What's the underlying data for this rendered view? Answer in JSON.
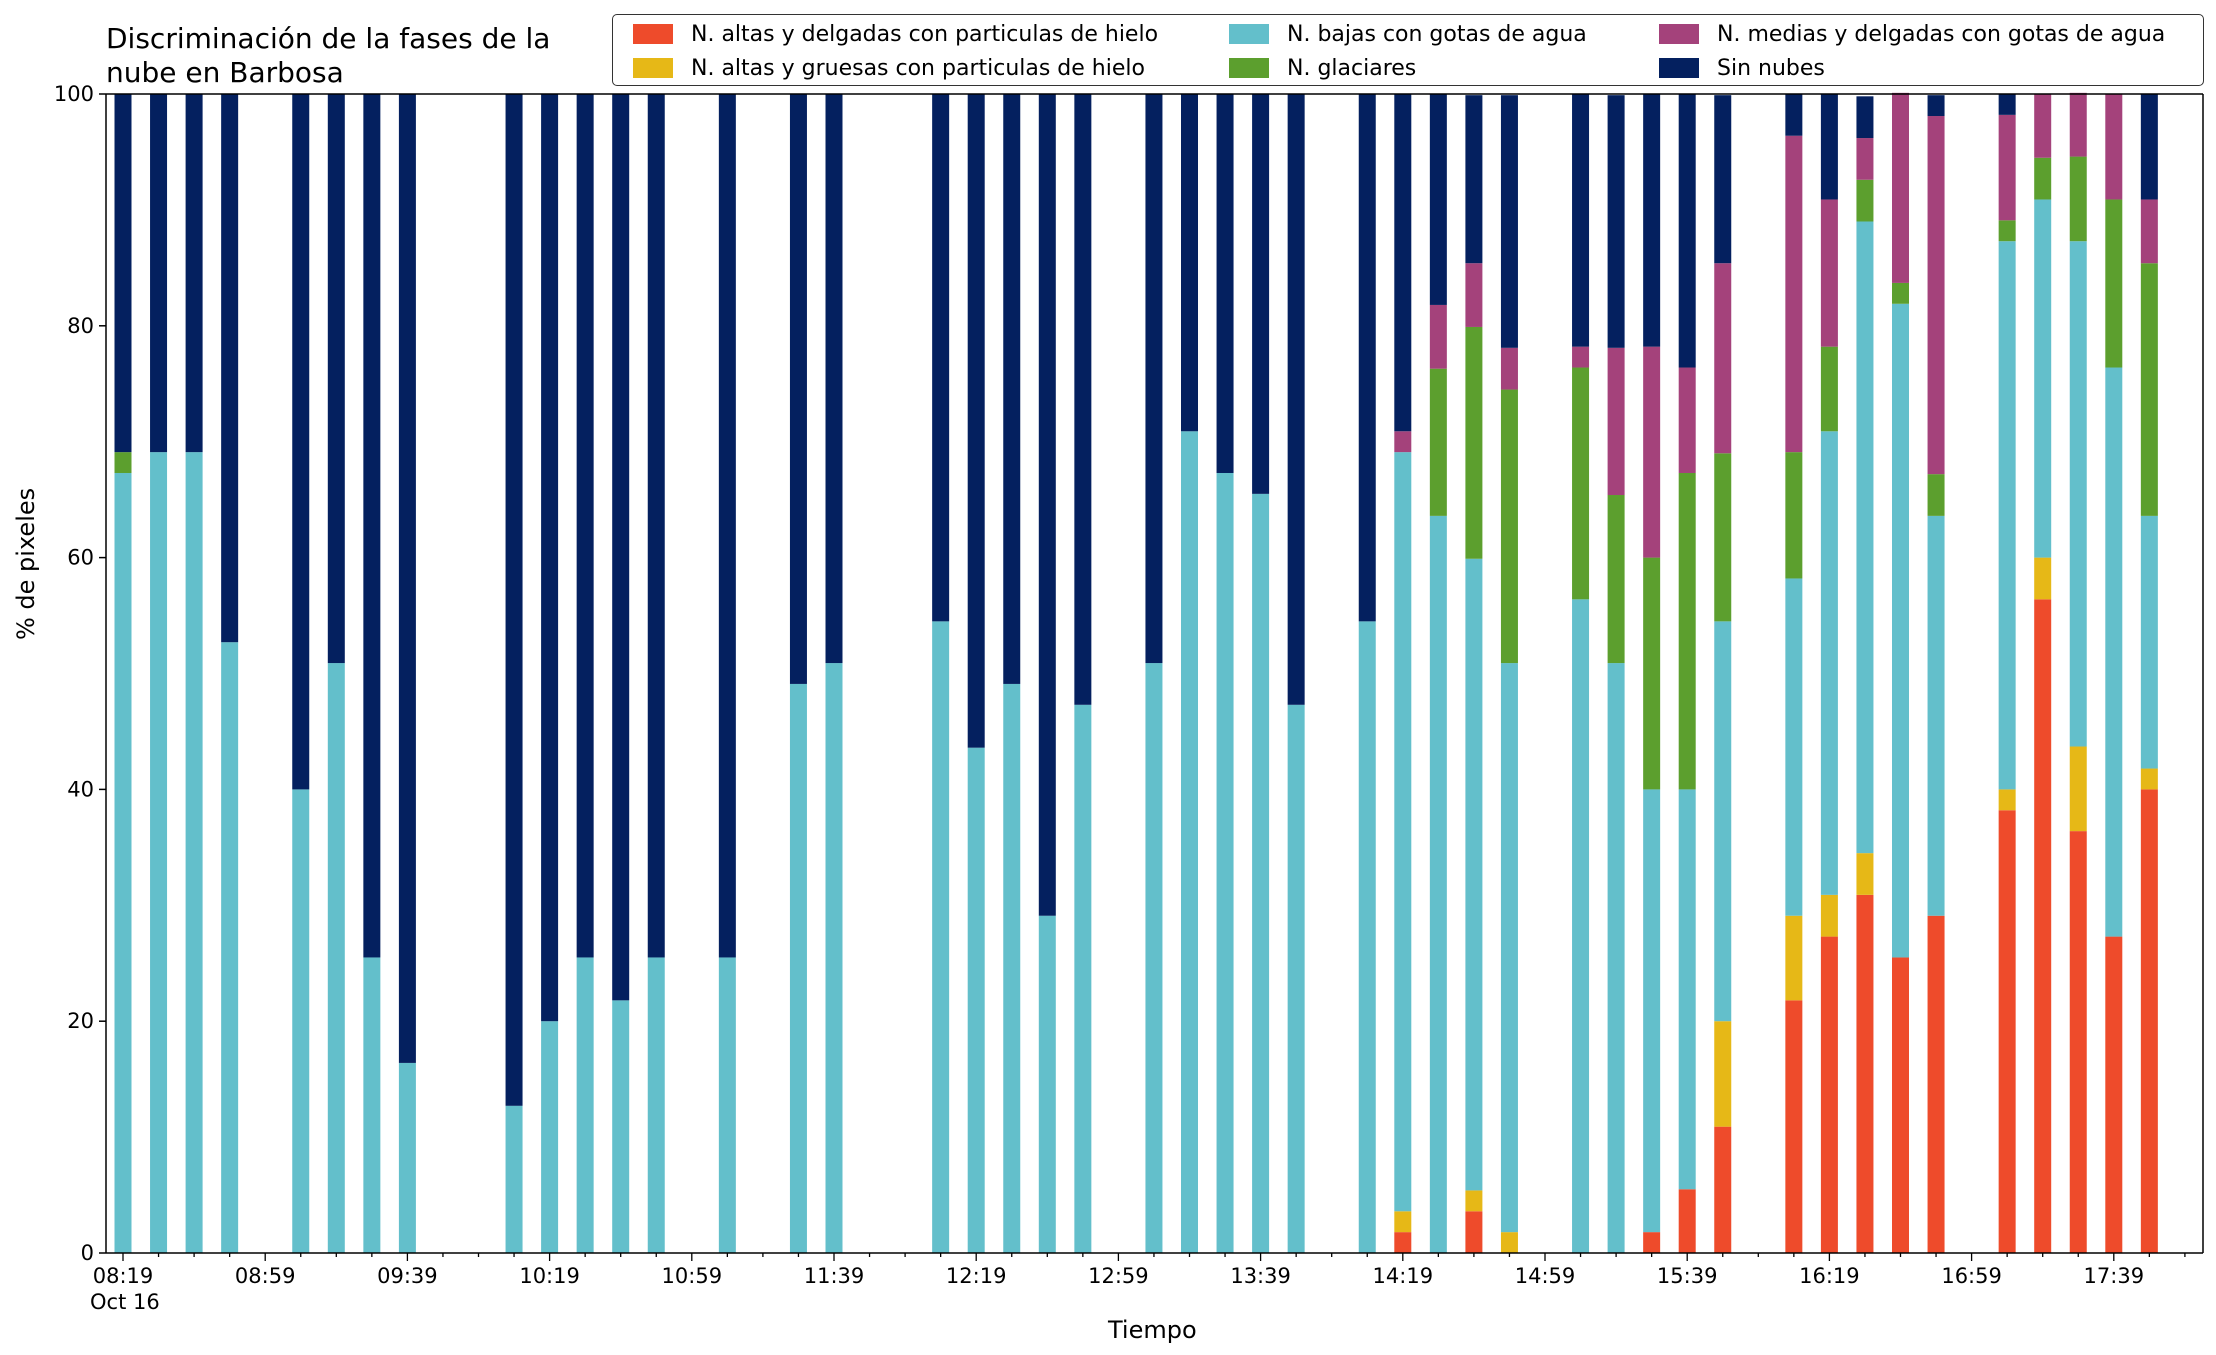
{
  "chart_data": {
    "type": "bar",
    "stacked": true,
    "title": "Discriminación de la fases de la\nnube en Barbosa",
    "xlabel": "Tiempo",
    "ylabel": "% de pixeles",
    "ylim": [
      0,
      100
    ],
    "yticks": [
      "0",
      "20",
      "40",
      "60",
      "80",
      "100"
    ],
    "xticks": [
      "08:19",
      "08:59",
      "09:39",
      "10:19",
      "10:59",
      "11:39",
      "12:19",
      "12:59",
      "13:39",
      "14:19",
      "14:59",
      "15:39",
      "16:19",
      "16:59",
      "17:39"
    ],
    "x_date_label": "Oct 16",
    "legend_position": "top-right",
    "grid": false,
    "legend": [
      {
        "name": "N. altas y delgadas con particulas de hielo",
        "color": "#ee4b2b"
      },
      {
        "name": "N. altas y gruesas con particulas de hielo",
        "color": "#e6b817"
      },
      {
        "name": "N. bajas con gotas de agua",
        "color": "#63bfcb"
      },
      {
        "name": "N. glaciares",
        "color": "#5c9f2e"
      },
      {
        "name": "N. medias y delgadas con gotas de agua",
        "color": "#a4427b"
      },
      {
        "name": "Sin nubes",
        "color": "#04205f"
      }
    ],
    "categories": [
      "08:19",
      "08:29",
      "08:39",
      "08:49",
      "09:09",
      "09:19",
      "09:29",
      "09:39",
      "10:09",
      "10:19",
      "10:29",
      "10:39",
      "10:49",
      "11:09",
      "11:29",
      "11:39",
      "12:09",
      "12:19",
      "12:29",
      "12:39",
      "12:49",
      "13:09",
      "13:19",
      "13:29",
      "13:39",
      "13:49",
      "14:09",
      "14:19",
      "14:29",
      "14:39",
      "14:49",
      "15:09",
      "15:19",
      "15:29",
      "15:39",
      "15:49",
      "16:09",
      "16:19",
      "16:29",
      "16:39",
      "16:49",
      "17:09",
      "17:19",
      "17:29",
      "17:39",
      "17:49"
    ],
    "series": [
      {
        "name": "N. altas y delgadas con particulas de hielo",
        "values": [
          0,
          0,
          0,
          0,
          0,
          0,
          0,
          0,
          0,
          0,
          0,
          0,
          0,
          0,
          0,
          0,
          0,
          0,
          0,
          0,
          0,
          0,
          0,
          0,
          0,
          0,
          0,
          1.8,
          0,
          3.6,
          0,
          0,
          0,
          1.8,
          5.5,
          10.9,
          21.8,
          27.3,
          30.9,
          25.5,
          29.1,
          38.2,
          56.4,
          36.4,
          27.3,
          40.0
        ]
      },
      {
        "name": "N. altas y gruesas con particulas de hielo",
        "values": [
          0,
          0,
          0,
          0,
          0,
          0,
          0,
          0,
          0,
          0,
          0,
          0,
          0,
          0,
          0,
          0,
          0,
          0,
          0,
          0,
          0,
          0,
          0,
          0,
          0,
          0,
          0,
          1.8,
          0,
          1.8,
          1.8,
          0,
          0,
          0,
          0,
          9.1,
          7.3,
          3.6,
          3.6,
          0,
          0,
          1.8,
          3.6,
          7.3,
          0,
          1.8
        ]
      },
      {
        "name": "N. bajas con gotas de agua",
        "values": [
          67.3,
          69.1,
          69.1,
          52.7,
          40.0,
          50.9,
          25.5,
          16.4,
          12.7,
          20.0,
          25.5,
          21.8,
          25.5,
          25.5,
          49.1,
          50.9,
          54.5,
          43.6,
          49.1,
          29.1,
          47.3,
          50.9,
          70.9,
          67.3,
          65.5,
          47.3,
          54.5,
          65.5,
          63.6,
          54.5,
          49.1,
          56.4,
          50.9,
          38.2,
          34.5,
          34.5,
          29.1,
          40.0,
          54.5,
          56.4,
          34.5,
          47.3,
          30.9,
          43.6,
          49.1,
          21.8
        ]
      },
      {
        "name": "N. glaciares",
        "values": [
          1.8,
          0,
          0,
          0,
          0,
          0,
          0,
          0,
          0,
          0,
          0,
          0,
          0,
          0,
          0,
          0,
          0,
          0,
          0,
          0,
          0,
          0,
          0,
          0,
          0,
          0,
          0,
          0,
          12.7,
          20.0,
          23.6,
          20.0,
          14.5,
          20.0,
          27.3,
          14.5,
          10.9,
          7.3,
          3.6,
          1.8,
          3.6,
          1.8,
          3.6,
          7.3,
          14.5,
          21.8
        ]
      },
      {
        "name": "N. medias y delgadas con gotas de agua",
        "values": [
          0,
          0,
          0,
          0,
          0,
          0,
          0,
          0,
          0,
          0,
          0,
          0,
          0,
          0,
          0,
          0,
          0,
          0,
          0,
          0,
          0,
          0,
          0,
          0,
          0,
          0,
          0,
          1.8,
          5.5,
          5.5,
          3.6,
          1.8,
          12.7,
          18.2,
          9.1,
          16.4,
          27.3,
          12.7,
          3.6,
          16.4,
          30.9,
          9.1,
          5.5,
          5.5,
          9.1,
          5.5
        ]
      },
      {
        "name": "Sin nubes",
        "values": [
          30.9,
          30.9,
          30.9,
          47.3,
          60.0,
          49.1,
          74.5,
          83.6,
          87.3,
          80.0,
          74.5,
          78.2,
          74.5,
          74.5,
          50.9,
          49.1,
          45.5,
          56.4,
          50.9,
          70.9,
          52.7,
          49.1,
          29.1,
          32.7,
          34.5,
          52.7,
          45.5,
          29.1,
          18.2,
          14.5,
          21.8,
          21.8,
          21.8,
          21.8,
          23.6,
          14.5,
          3.6,
          9.1,
          3.6,
          0,
          1.8,
          1.8,
          0,
          0,
          0,
          9.1
        ]
      }
    ]
  }
}
